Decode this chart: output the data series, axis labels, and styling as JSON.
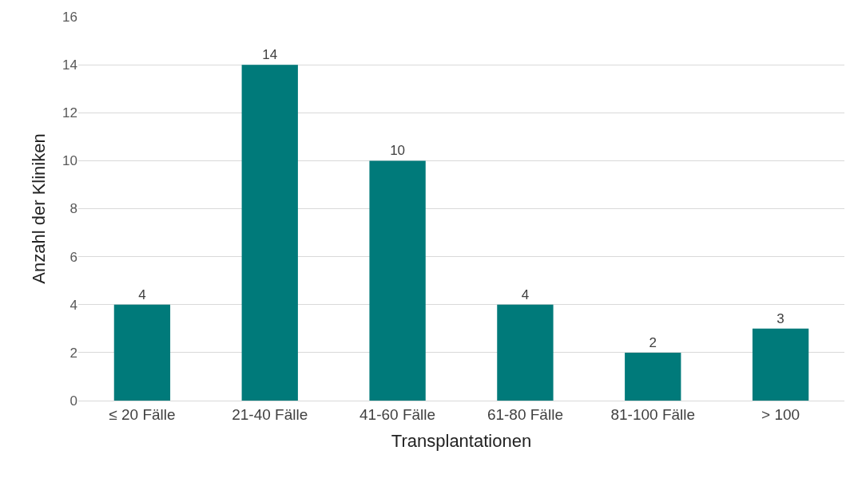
{
  "chart_data": {
    "type": "bar",
    "xlabel": "Transplantationen",
    "ylabel": "Anzahl der Kliniken",
    "categories": [
      "≤ 20 Fälle",
      "21-40 Fälle",
      "41-60 Fälle",
      "61-80 Fälle",
      "81-100 Fälle",
      "> 100"
    ],
    "values": [
      4,
      14,
      10,
      4,
      2,
      3
    ],
    "color": "#007a7a",
    "ylim": [
      0,
      16
    ],
    "yticks": [
      0,
      2,
      4,
      6,
      8,
      10,
      12,
      14,
      16
    ],
    "grid": "y",
    "data_labels": true,
    "legend": false
  }
}
